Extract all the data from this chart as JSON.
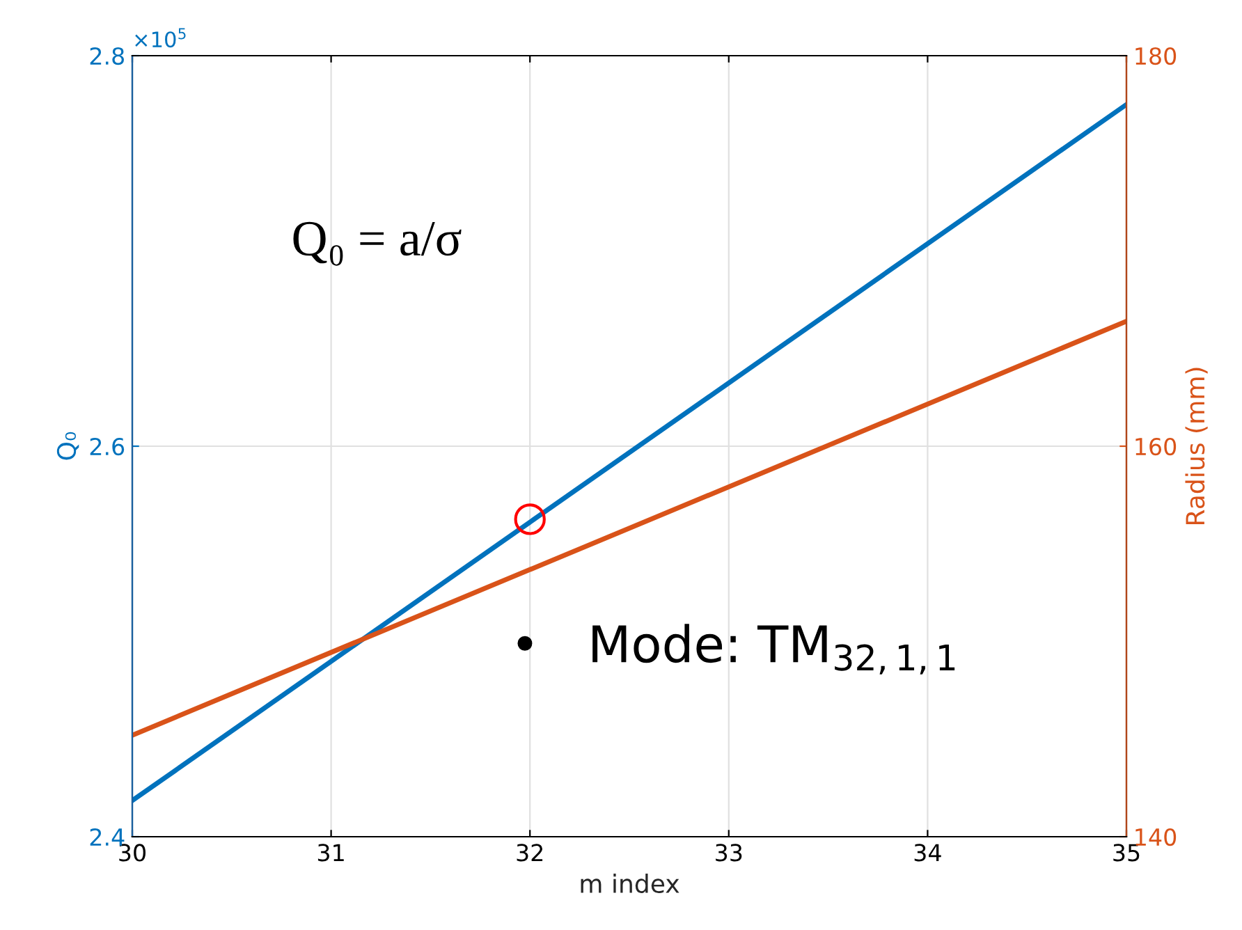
{
  "chart_data": {
    "type": "line",
    "xlabel": "m index",
    "ylabel": "Q₀",
    "y2label": "Radius (mm)",
    "x": [
      30,
      35
    ],
    "series": [
      {
        "color": "#0072bd",
        "values": [
          2.4185,
          2.775
        ]
      },
      {
        "color": "#d95319",
        "values": [
          145.2,
          166.4
        ],
        "axis": "y2"
      },
      {
        "type": "scatter",
        "color": "#ff0000",
        "x": [
          32
        ],
        "values": [
          2.5626
        ],
        "marker": "circle"
      }
    ],
    "xlim": [
      30,
      35
    ],
    "xticks": [
      30,
      31,
      32,
      33,
      34,
      35
    ],
    "ylim": [
      2.4,
      2.8
    ],
    "yticks": [
      2.4,
      2.6,
      2.8
    ],
    "y2lim": [
      140,
      180
    ],
    "y2ticks": [
      140,
      160,
      180
    ],
    "grid": true,
    "annotations": [
      "×10$^{5}$",
      "Q₀ = a/σ",
      "•   Mode: TM$_{32,1,1}$"
    ]
  }
}
